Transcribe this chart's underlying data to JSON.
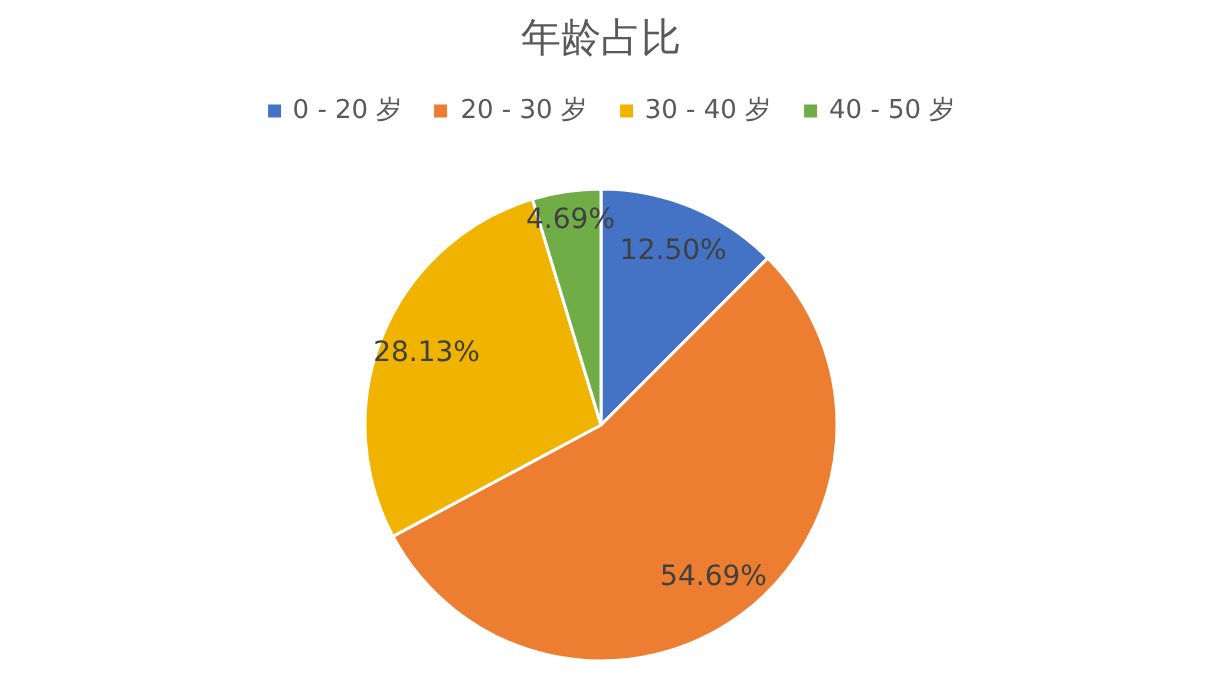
{
  "chart_data": {
    "type": "pie",
    "title": "年龄占比",
    "categories": [
      "0 - 20 岁",
      "20 - 30 岁",
      "30 - 40 岁",
      "40 - 50 岁"
    ],
    "values": [
      12.5,
      54.69,
      28.13,
      4.69
    ],
    "colors": [
      "#4472c4",
      "#ed7d31",
      "#f0b400",
      "#70ad47"
    ],
    "value_labels": [
      "12.50%",
      "54.69%",
      "28.13%",
      "4.69%"
    ],
    "legend": "top"
  }
}
